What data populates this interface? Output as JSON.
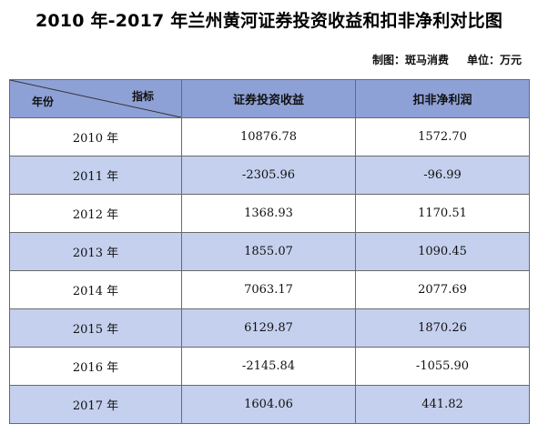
{
  "title": "2010 年-2017 年兰州黄河证券投资收益和扣非净利对比图",
  "meta": {
    "made_by": "制图：斑马消费",
    "unit": "单位：万元"
  },
  "table": {
    "corner_left": "年份",
    "corner_right": "指标",
    "columns": [
      "证券投资收益",
      "扣非净利润"
    ],
    "rows": [
      {
        "year": "2010 年",
        "invest": "10876.78",
        "profit": "1572.70"
      },
      {
        "year": "2011 年",
        "invest": "-2305.96",
        "profit": "-96.99"
      },
      {
        "year": "2012 年",
        "invest": "1368.93",
        "profit": "1170.51"
      },
      {
        "year": "2013 年",
        "invest": "1855.07",
        "profit": "1090.45"
      },
      {
        "year": "2014 年",
        "invest": "7063.17",
        "profit": "2077.69"
      },
      {
        "year": "2015 年",
        "invest": "6129.87",
        "profit": "1870.26"
      },
      {
        "year": "2016 年",
        "invest": "-2145.84",
        "profit": "-1055.90"
      },
      {
        "year": "2017 年",
        "invest": "1604.06",
        "profit": "441.82"
      }
    ]
  },
  "colors": {
    "header_bg": "#8ea1d6",
    "alt_row_bg": "#c5d0ee",
    "row_bg": "#ffffff",
    "border": "#6a6a6a"
  }
}
